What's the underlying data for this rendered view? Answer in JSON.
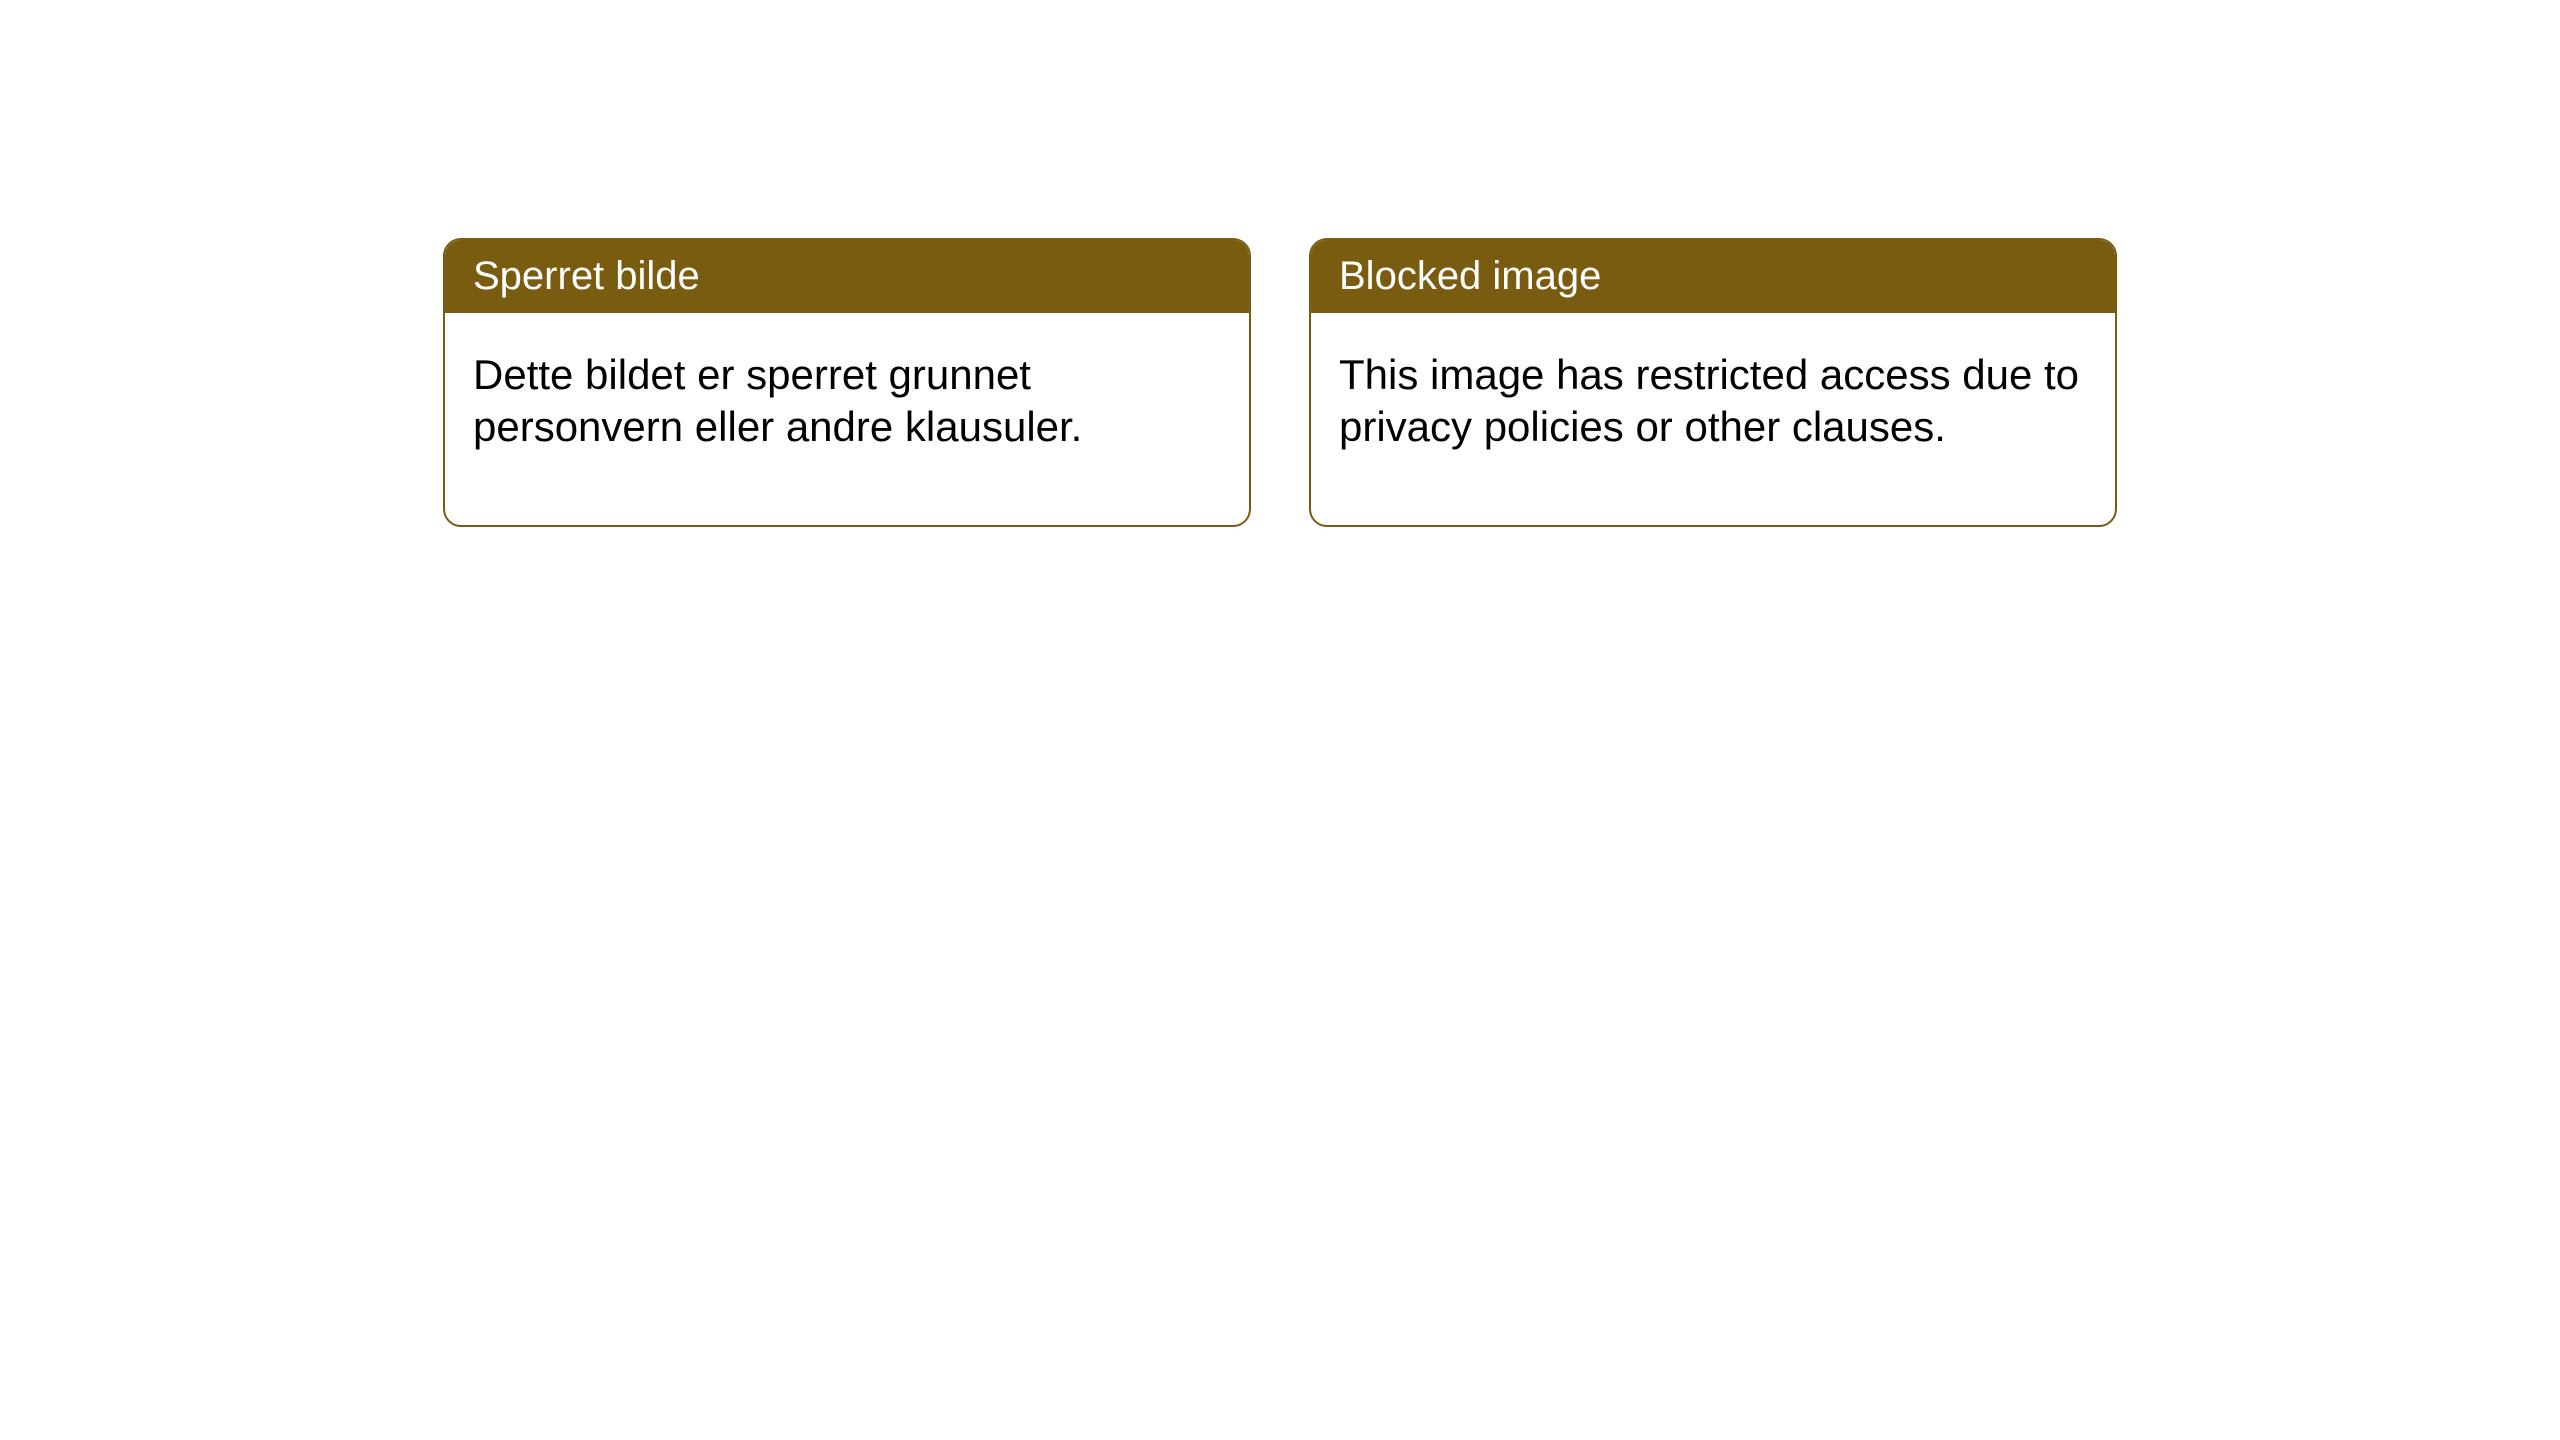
{
  "layout": {
    "background_color": "#ffffff",
    "card_header_bg": "#7a5c10",
    "card_border_color": "#7a5c10",
    "card_header_text_color": "#ffffff",
    "card_body_text_color": "#000000",
    "header_fontsize": 40,
    "body_fontsize": 42,
    "border_radius": 18,
    "gap": 58
  },
  "cards": [
    {
      "title": "Sperret bilde",
      "body": "Dette bildet er sperret grunnet personvern eller andre klausuler."
    },
    {
      "title": "Blocked image",
      "body": "This image has restricted access due to privacy policies or other clauses."
    }
  ]
}
